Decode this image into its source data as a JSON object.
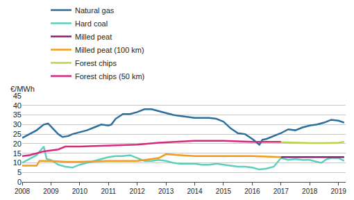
{
  "chart_data": {
    "type": "line",
    "y_label": "€/MWh",
    "xlim": [
      2008,
      2019.25
    ],
    "xticks": [
      2008,
      2009,
      2010,
      2011,
      2012,
      2013,
      2014,
      2015,
      2016,
      2017,
      2018,
      2019
    ],
    "ylim": [
      0,
      45
    ],
    "yticks": [
      0,
      5,
      10,
      15,
      20,
      25,
      30,
      35,
      40,
      45
    ],
    "grid": true,
    "legend": "top",
    "series": [
      {
        "name": "Natural gas",
        "color": "#2a6f9e",
        "x": [
          2008.0,
          2008.25,
          2008.5,
          2008.75,
          2008.9,
          2009.0,
          2009.25,
          2009.4,
          2009.6,
          2009.75,
          2010.0,
          2010.25,
          2010.5,
          2010.75,
          2011.0,
          2011.1,
          2011.25,
          2011.5,
          2011.75,
          2012.0,
          2012.25,
          2012.5,
          2012.75,
          2013.0,
          2013.25,
          2013.5,
          2013.75,
          2014.0,
          2014.25,
          2014.5,
          2014.75,
          2015.0,
          2015.25,
          2015.5,
          2015.75,
          2016.0,
          2016.25,
          2016.35,
          2016.5,
          2016.75,
          2017.0,
          2017.25,
          2017.5,
          2017.75,
          2018.0,
          2018.25,
          2018.5,
          2018.75,
          2019.0,
          2019.2
        ],
        "values": [
          23,
          25,
          27,
          30,
          30.5,
          29,
          25,
          23.5,
          24,
          25,
          26,
          27,
          28.5,
          30,
          29.5,
          30,
          33,
          35.5,
          35.5,
          36.5,
          38,
          38,
          37,
          36,
          35,
          34.5,
          34,
          33.5,
          33.5,
          33.5,
          33,
          31.5,
          28,
          25.5,
          25,
          22.5,
          19.5,
          22,
          22.5,
          24,
          25.5,
          27.5,
          27,
          28.5,
          29.5,
          30,
          31,
          32.5,
          32,
          31
        ]
      },
      {
        "name": "Hard coal",
        "color": "#5fcfbd",
        "x": [
          2008.0,
          2008.25,
          2008.5,
          2008.75,
          2008.85,
          2009.0,
          2009.25,
          2009.5,
          2009.75,
          2010.0,
          2010.25,
          2010.5,
          2010.75,
          2011.0,
          2011.25,
          2011.5,
          2011.75,
          2012.0,
          2012.25,
          2012.5,
          2012.75,
          2013.0,
          2013.25,
          2013.5,
          2013.75,
          2014.0,
          2014.25,
          2014.5,
          2014.75,
          2015.0,
          2015.25,
          2015.5,
          2015.75,
          2016.0,
          2016.25,
          2016.5,
          2016.75,
          2017.0,
          2017.25,
          2017.5,
          2017.75,
          2018.0,
          2018.25,
          2018.4,
          2018.6,
          2018.75,
          2019.0,
          2019.2
        ],
        "values": [
          10,
          12,
          14,
          18.5,
          12,
          11.5,
          9,
          8,
          7.5,
          9,
          10,
          11,
          12,
          13,
          13.5,
          13.5,
          14,
          12.5,
          11,
          11,
          11.5,
          11,
          10,
          9.5,
          9.5,
          9.5,
          9,
          9,
          9.5,
          9,
          8.5,
          8,
          8,
          7.5,
          6.5,
          7,
          8,
          12.5,
          11.5,
          12,
          11.5,
          11.5,
          10.5,
          10,
          12,
          12.5,
          12.5,
          11
        ]
      },
      {
        "name": "Milled peat",
        "color": "#8b1a79",
        "x": [
          2017.0,
          2017.5,
          2018.0,
          2018.5,
          2019.0,
          2019.2
        ],
        "values": [
          13,
          13,
          13,
          12.8,
          13,
          13
        ]
      },
      {
        "name": "Milled peat (100 km)",
        "color": "#f59a1b",
        "x": [
          2008.0,
          2008.5,
          2008.6,
          2009.0,
          2009.5,
          2010.0,
          2011.0,
          2012.0,
          2012.75,
          2013.0,
          2013.5,
          2014.0,
          2015.0,
          2016.0,
          2017.0
        ],
        "values": [
          8.5,
          8.5,
          11,
          11,
          10.5,
          10.5,
          11,
          11,
          12.5,
          14.5,
          14,
          13.5,
          13.5,
          13.5,
          13
        ]
      },
      {
        "name": "Forest chips",
        "color": "#bdd443",
        "x": [
          2017.0,
          2017.5,
          2018.0,
          2018.5,
          2019.0,
          2019.2
        ],
        "values": [
          20.8,
          20.5,
          20.3,
          20.3,
          20.5,
          21
        ]
      },
      {
        "name": "Forest chips (50 km)",
        "color": "#d6287e",
        "x": [
          2008.0,
          2008.25,
          2008.5,
          2008.75,
          2009.25,
          2009.5,
          2010.0,
          2011.0,
          2012.0,
          2012.75,
          2013.5,
          2014.0,
          2015.0,
          2016.0,
          2017.0
        ],
        "values": [
          13.5,
          14,
          15,
          16,
          17,
          18.5,
          18.5,
          19,
          19.5,
          20.5,
          21,
          21.5,
          21.5,
          21,
          21
        ]
      }
    ]
  }
}
